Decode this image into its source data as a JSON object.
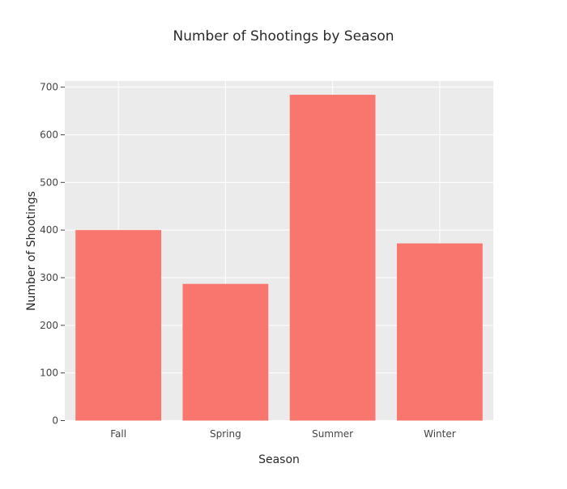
{
  "chart_data": {
    "type": "bar",
    "title": "Number of Shootings by Season",
    "xlabel": "Season",
    "ylabel": "Number of Shootings",
    "categories": [
      "Fall",
      "Spring",
      "Summer",
      "Winter"
    ],
    "values": [
      400,
      287,
      684,
      372
    ],
    "ylim": [
      0,
      700
    ],
    "yticks": [
      0,
      100,
      200,
      300,
      400,
      500,
      600,
      700
    ],
    "grid": true,
    "bar_color": "#F8766D",
    "plot_background": "#EBEBEB",
    "grid_color": "#FFFFFF"
  }
}
